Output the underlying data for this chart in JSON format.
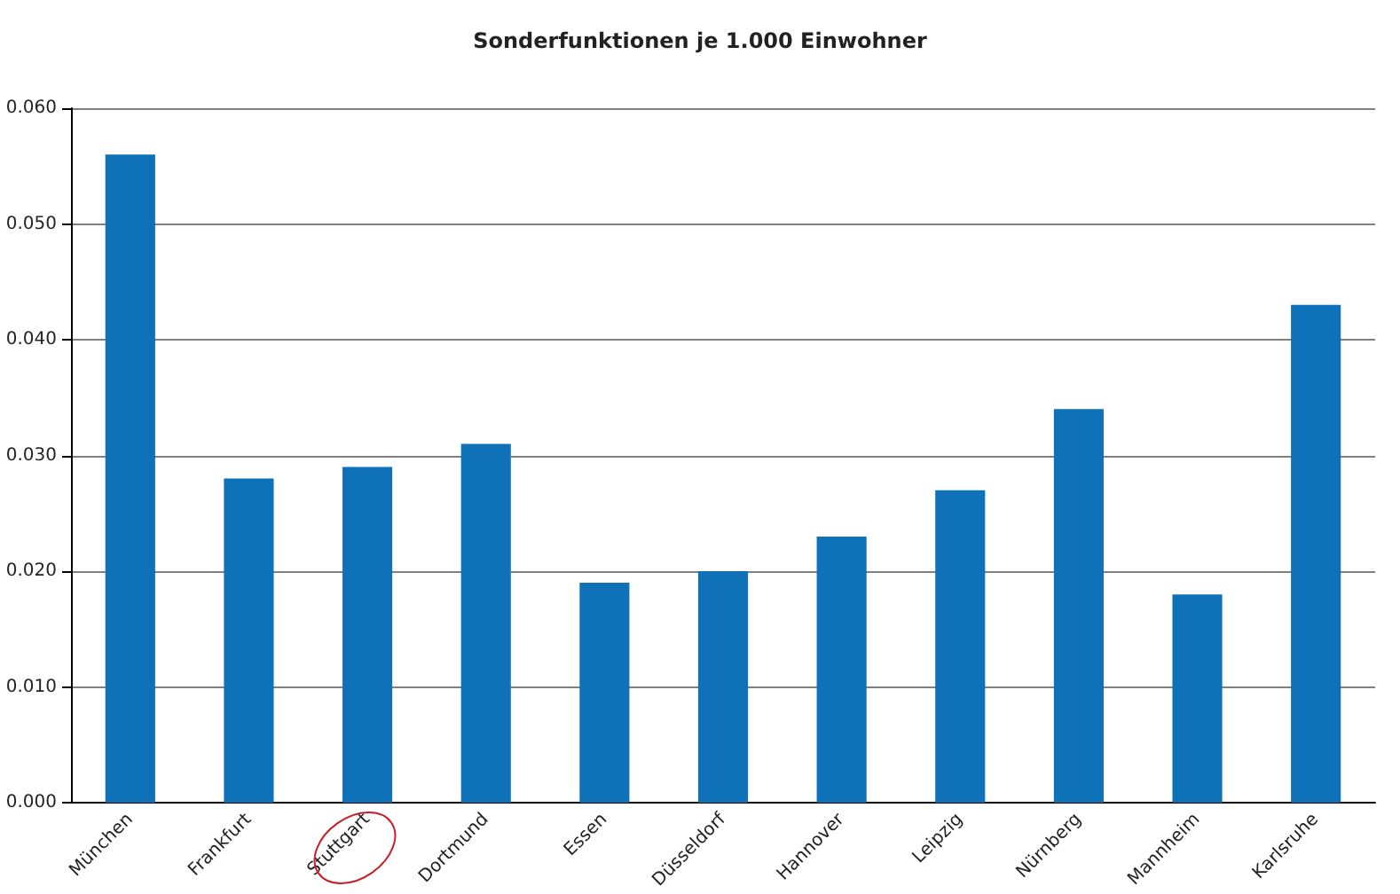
{
  "chart_data": {
    "type": "bar",
    "title": "Sonderfunktionen je 1.000 Einwohner",
    "categories": [
      "München",
      "Frankfurt",
      "Stuttgart",
      "Dortmund",
      "Essen",
      "Düsseldorf",
      "Hannover",
      "Leipzig",
      "Nürnberg",
      "Mannheim",
      "Karlsruhe"
    ],
    "values": [
      0.056,
      0.028,
      0.029,
      0.031,
      0.019,
      0.02,
      0.023,
      0.027,
      0.034,
      0.018,
      0.043
    ],
    "color": "#0f71b7",
    "ylim": [
      0,
      0.06
    ],
    "yticks": [
      {
        "value": 0,
        "label": "0.000"
      },
      {
        "value": 0.01,
        "label": "0.010"
      },
      {
        "value": 0.02,
        "label": "0.020"
      },
      {
        "value": 0.03,
        "label": "0.030"
      },
      {
        "value": 0.04,
        "label": "0.040"
      },
      {
        "value": 0.05,
        "label": "0.050"
      },
      {
        "value": 0.06,
        "label": "0.060"
      }
    ],
    "grid": "y"
  }
}
